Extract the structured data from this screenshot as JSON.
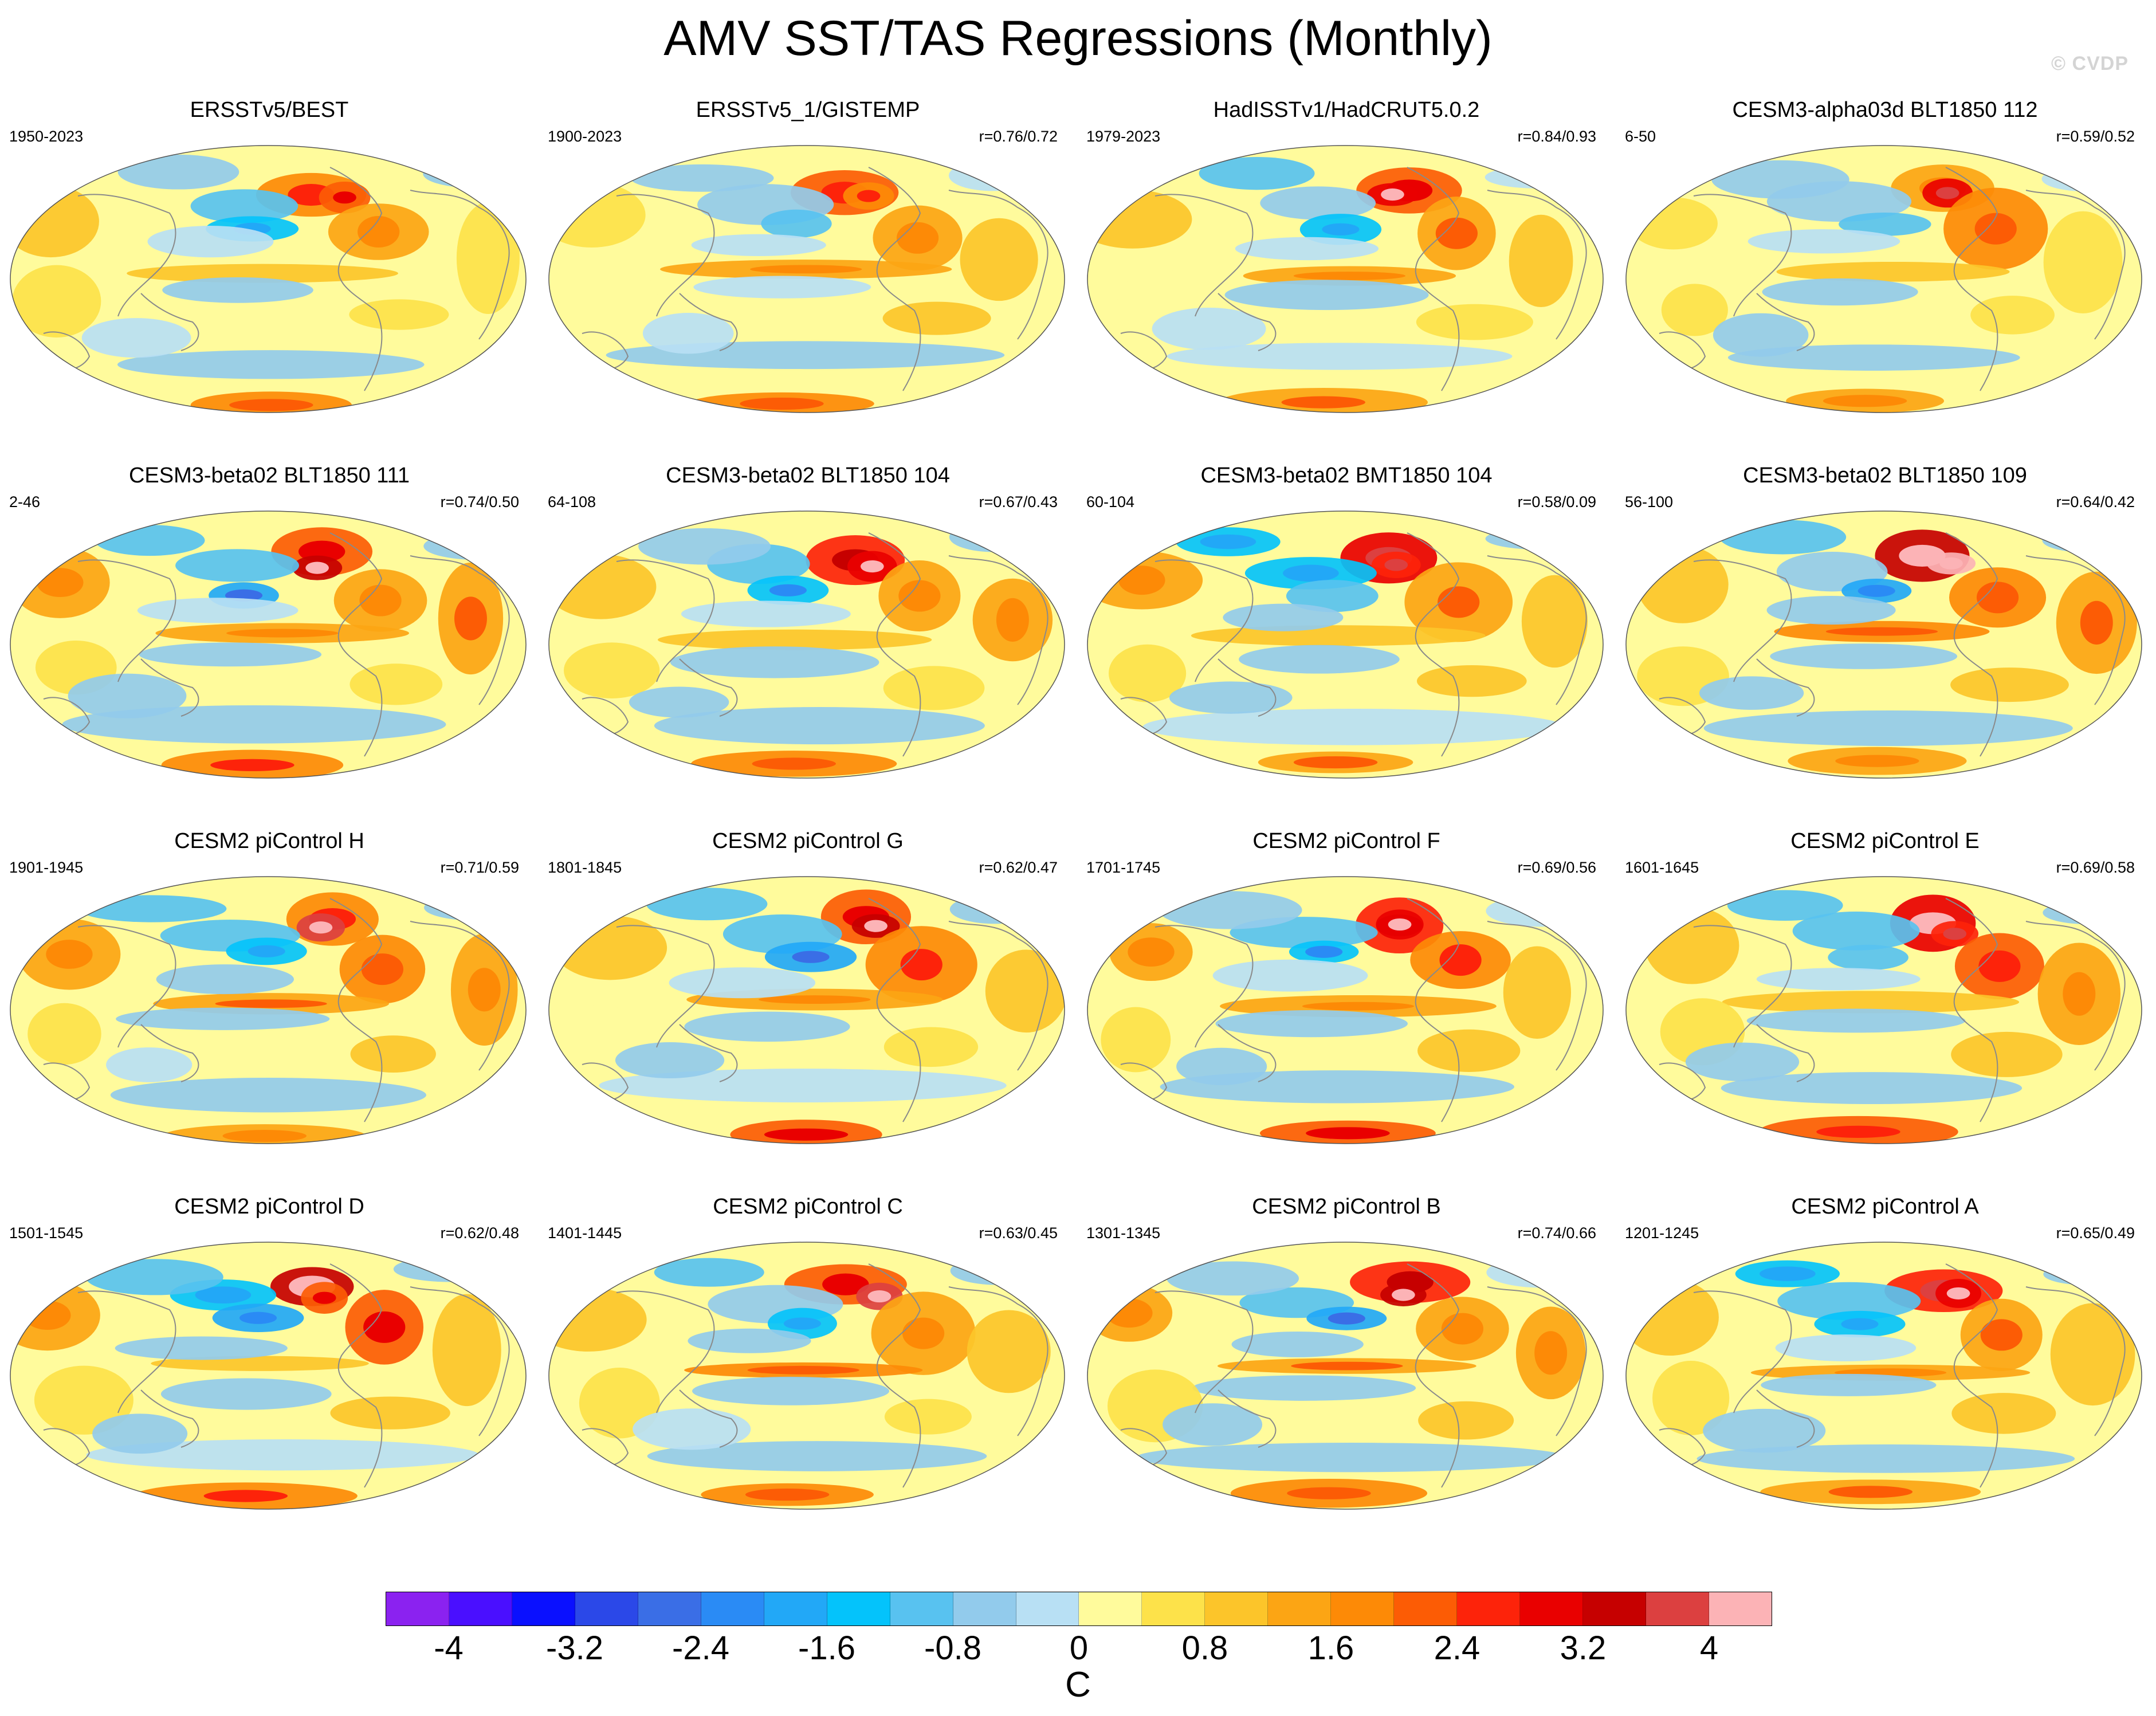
{
  "title": "AMV SST/TAS Regressions (Monthly)",
  "watermark": "© CVDP",
  "chart_data": {
    "type": "heatmap",
    "projection": "robinson-style global maps centered on the Pacific",
    "panels": [
      {
        "title": "ERSSTv5/BEST",
        "period": "1950-2023",
        "corr": ""
      },
      {
        "title": "ERSSTv5_1/GISTEMP",
        "period": "1900-2023",
        "corr": "r=0.76/0.72"
      },
      {
        "title": "HadISSTv1/HadCRUT5.0.2",
        "period": "1979-2023",
        "corr": "r=0.84/0.93"
      },
      {
        "title": "CESM3-alpha03d BLT1850 112",
        "period": "6-50",
        "corr": "r=0.59/0.52"
      },
      {
        "title": "CESM3-beta02 BLT1850 111",
        "period": "2-46",
        "corr": "r=0.74/0.50"
      },
      {
        "title": "CESM3-beta02 BLT1850 104",
        "period": "64-108",
        "corr": "r=0.67/0.43"
      },
      {
        "title": "CESM3-beta02 BMT1850 104",
        "period": "60-104",
        "corr": "r=0.58/0.09"
      },
      {
        "title": "CESM3-beta02 BLT1850 109",
        "period": "56-100",
        "corr": "r=0.64/0.42"
      },
      {
        "title": "CESM2 piControl H",
        "period": "1901-1945",
        "corr": "r=0.71/0.59"
      },
      {
        "title": "CESM2 piControl G",
        "period": "1801-1845",
        "corr": "r=0.62/0.47"
      },
      {
        "title": "CESM2 piControl F",
        "period": "1701-1745",
        "corr": "r=0.69/0.56"
      },
      {
        "title": "CESM2 piControl E",
        "period": "1601-1645",
        "corr": "r=0.69/0.58"
      },
      {
        "title": "CESM2 piControl D",
        "period": "1501-1545",
        "corr": "r=0.62/0.48"
      },
      {
        "title": "CESM2 piControl C",
        "period": "1401-1445",
        "corr": "r=0.63/0.45"
      },
      {
        "title": "CESM2 piControl B",
        "period": "1301-1345",
        "corr": "r=0.74/0.66"
      },
      {
        "title": "CESM2 piControl A",
        "period": "1201-1245",
        "corr": "r=0.65/0.49"
      }
    ],
    "colorbar": {
      "unit": "C",
      "range": [
        -4.4,
        4.4
      ],
      "step": 0.4,
      "tick_labels": [
        "-4",
        "-3.2",
        "-2.4",
        "-1.6",
        "-0.8",
        "0",
        "0.8",
        "1.6",
        "2.4",
        "3.2",
        "4"
      ],
      "tick_values": [
        -4,
        -3.2,
        -2.4,
        -1.6,
        -0.8,
        0,
        0.8,
        1.6,
        2.4,
        3.2,
        4
      ],
      "colors": [
        "#8b22f0",
        "#4a0fff",
        "#0a10ff",
        "#2b48e8",
        "#3a6ee6",
        "#2a8bf5",
        "#22a8f7",
        "#04c3fb",
        "#58c2f0",
        "#92cbec",
        "#b8e0f4",
        "#fffb9c",
        "#fde24a",
        "#fcc52a",
        "#fca514",
        "#fd8a06",
        "#fc5c05",
        "#fd230a",
        "#e90000",
        "#c60000",
        "#dc4040",
        "#fcb3b6"
      ]
    }
  }
}
